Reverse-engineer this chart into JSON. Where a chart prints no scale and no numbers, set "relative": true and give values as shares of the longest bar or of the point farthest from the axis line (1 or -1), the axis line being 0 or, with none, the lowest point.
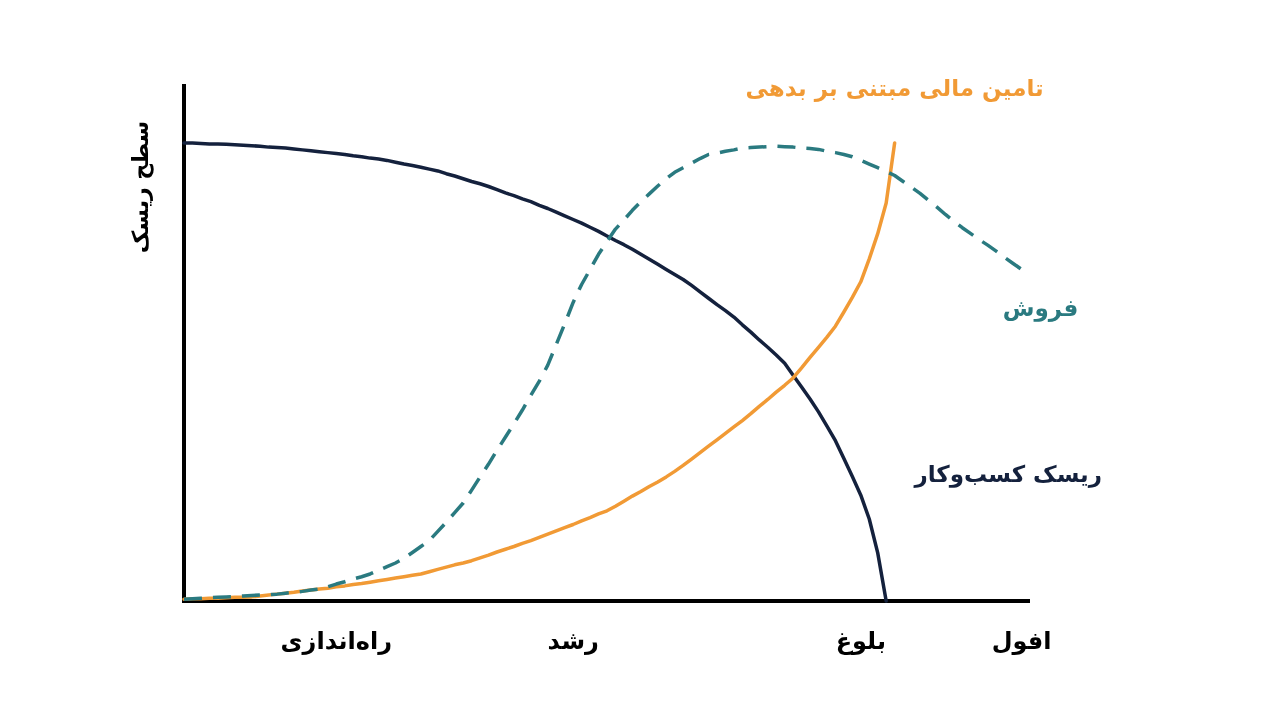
{
  "chart_data": {
    "type": "line",
    "relative": true,
    "ylabel": "سطح ریسک",
    "line_style": "solid",
    "categories": [
      null,
      null,
      null,
      null,
      null,
      null,
      null,
      null,
      null,
      null,
      null,
      null,
      null,
      null,
      null,
      null,
      null,
      null,
      "راه‌اندازی",
      null,
      null,
      null,
      null,
      null,
      null,
      null,
      null,
      null,
      null,
      null,
      null,
      null,
      null,
      null,
      null,
      null,
      null,
      null,
      null,
      null,
      null,
      null,
      null,
      null,
      null,
      null,
      "رشد",
      null,
      null,
      null,
      null,
      null,
      null,
      null,
      null,
      null,
      null,
      null,
      null,
      null,
      null,
      null,
      null,
      null,
      null,
      null,
      null,
      null,
      null,
      null,
      null,
      null,
      null,
      null,
      null,
      null,
      null,
      null,
      null,
      null,
      "بلوغ",
      null,
      null,
      null,
      null,
      null,
      null,
      null,
      null,
      null,
      null,
      null,
      null,
      null,
      null,
      null,
      null,
      null,
      null,
      "افول",
      null
    ],
    "series": [
      {
        "name": "ریسک کسب‌وکار",
        "color": "#14213d",
        "values": [
          1,
          1,
          0.999,
          0.998,
          0.998,
          0.997,
          0.996,
          0.995,
          0.994,
          0.993,
          0.991,
          0.99,
          0.989,
          0.987,
          0.985,
          0.983,
          0.981,
          0.979,
          0.977,
          0.975,
          0.972,
          0.97,
          0.967,
          0.965,
          0.962,
          0.958,
          0.954,
          0.951,
          0.947,
          0.943,
          0.939,
          0.933,
          0.928,
          0.922,
          0.916,
          0.911,
          0.905,
          0.898,
          0.891,
          0.885,
          0.878,
          0.872,
          0.864,
          0.857,
          0.849,
          0.841,
          0.833,
          0.825,
          0.816,
          0.807,
          0.797,
          0.787,
          0.778,
          0.768,
          0.757,
          0.746,
          0.735,
          0.724,
          0.713,
          0.702,
          0.689,
          0.675,
          0.661,
          0.647,
          0.634,
          0.62,
          0.603,
          0.587,
          0.57,
          0.554,
          0.537,
          0.519,
          0.493,
          0.467,
          0.441,
          0.413,
          0.382,
          0.35,
          0.311,
          0.272,
          0.231,
          0.179,
          0.105,
          0,
          null,
          null,
          null,
          null,
          null,
          null,
          null,
          null,
          null,
          null,
          null,
          null,
          null,
          null,
          null,
          null,
          null
        ]
      },
      {
        "name": "تامین مالی مبتنی بر بدهی",
        "color": "#f19a35",
        "values": [
          0.004,
          0.005,
          0.005,
          0.006,
          0.006,
          0.007,
          0.008,
          0.008,
          0.009,
          0.011,
          0.013,
          0.015,
          0.017,
          0.019,
          0.022,
          0.024,
          0.026,
          0.028,
          0.031,
          0.033,
          0.036,
          0.038,
          0.041,
          0.044,
          0.047,
          0.05,
          0.053,
          0.056,
          0.059,
          0.064,
          0.069,
          0.074,
          0.079,
          0.083,
          0.088,
          0.094,
          0.1,
          0.107,
          0.113,
          0.119,
          0.126,
          0.132,
          0.139,
          0.146,
          0.153,
          0.16,
          0.167,
          0.175,
          0.182,
          0.19,
          0.197,
          0.207,
          0.218,
          0.229,
          0.239,
          0.25,
          0.26,
          0.271,
          0.283,
          0.296,
          0.31,
          0.324,
          0.338,
          0.352,
          0.366,
          0.38,
          0.394,
          0.409,
          0.425,
          0.44,
          0.456,
          0.471,
          0.487,
          0.509,
          0.532,
          0.554,
          0.576,
          0.6,
          0.631,
          0.663,
          0.697,
          0.747,
          0.802,
          0.869,
          1,
          null,
          null,
          null,
          null,
          null,
          null,
          null,
          null,
          null,
          null,
          null,
          null,
          null,
          null,
          null,
          null
        ]
      },
      {
        "name": "فروش",
        "color": "#2a7a80",
        "line_style": "dashed",
        "values": [
          0.004,
          0.005,
          0.006,
          0.007,
          0.008,
          0.009,
          0.01,
          0.011,
          0.012,
          0.013,
          0.014,
          0.015,
          0.017,
          0.019,
          0.021,
          0.024,
          0.026,
          0.031,
          0.037,
          0.042,
          0.048,
          0.053,
          0.059,
          0.067,
          0.075,
          0.083,
          0.093,
          0.106,
          0.119,
          0.132,
          0.152,
          0.172,
          0.193,
          0.214,
          0.242,
          0.271,
          0.299,
          0.329,
          0.358,
          0.387,
          0.417,
          0.449,
          0.48,
          0.515,
          0.56,
          0.605,
          0.652,
          0.691,
          0.724,
          0.757,
          0.785,
          0.812,
          0.832,
          0.853,
          0.872,
          0.889,
          0.906,
          0.922,
          0.936,
          0.946,
          0.956,
          0.966,
          0.975,
          0.978,
          0.982,
          0.985,
          0.989,
          0.99,
          0.991,
          0.992,
          0.993,
          0.992,
          0.991,
          0.989,
          0.988,
          0.986,
          0.982,
          0.979,
          0.975,
          0.97,
          0.962,
          0.954,
          0.946,
          0.938,
          0.929,
          0.916,
          0.903,
          0.89,
          0.875,
          0.86,
          0.844,
          0.829,
          0.815,
          0.802,
          0.789,
          0.777,
          0.764,
          0.75,
          0.737,
          0.724,
          null
        ]
      }
    ]
  }
}
